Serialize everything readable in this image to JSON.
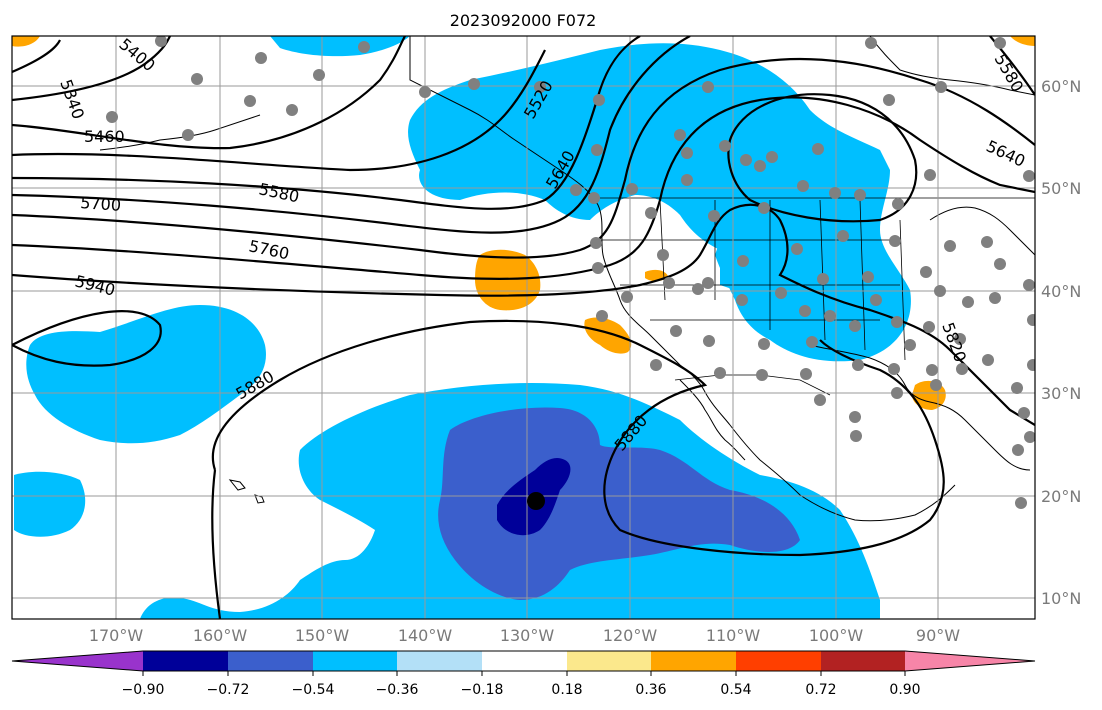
{
  "title": "2023092000 F072",
  "colors": {
    "purple": "#9933cc",
    "navy": "#000099",
    "royal": "#3b5fcc",
    "cyan": "#00bfff",
    "lightblue": "#b3e0f7",
    "white": "#ffffff",
    "paleyellow": "#fbe88c",
    "orange": "#ffa500",
    "redorange": "#ff3f00",
    "darkred": "#b22222",
    "pink": "#f785a8",
    "station_gray": "#808080"
  },
  "longitude_labels": [
    "170°W",
    "160°W",
    "150°W",
    "140°W",
    "130°W",
    "120°W",
    "110°W",
    "100°W",
    "90°W"
  ],
  "latitude_labels": [
    "60°N",
    "50°N",
    "40°N",
    "30°N",
    "20°N",
    "10°N"
  ],
  "contour_labels": [
    "5340",
    "5400",
    "5460",
    "5520",
    "5580",
    "5640",
    "5700",
    "5760",
    "5820",
    "5880",
    "5880",
    "5940",
    "5580",
    "5640"
  ],
  "colorbar": {
    "tick_labels": [
      "−0.90",
      "−0.72",
      "−0.54",
      "−0.36",
      "−0.18",
      "0.18",
      "0.36",
      "0.54",
      "0.72",
      "0.90"
    ]
  }
}
